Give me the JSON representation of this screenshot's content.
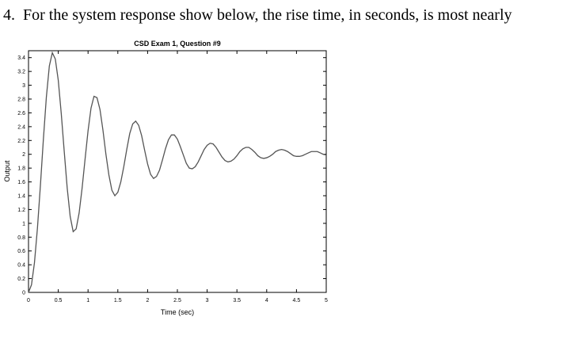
{
  "question": {
    "number": "4.",
    "text": "For the system response show below, the rise time, in seconds, is most nearly"
  },
  "chart_data": {
    "type": "line",
    "title": "CSD Exam 1, Question #9",
    "xlabel": "Time (sec)",
    "ylabel": "Output",
    "xlim": [
      0,
      5
    ],
    "ylim": [
      0,
      3.5
    ],
    "x_ticks": [
      0,
      0.5,
      1,
      1.5,
      2,
      2.5,
      3,
      3.5,
      4,
      4.5,
      5
    ],
    "x_tick_labels": [
      "0",
      "0.5",
      "1",
      "1.5",
      "2",
      "2.5",
      "3",
      "3.5",
      "4",
      "4.5",
      "5"
    ],
    "y_ticks": [
      0,
      0.2,
      0.4,
      0.6,
      0.8,
      1,
      1.2,
      1.4,
      1.6,
      1.8,
      2,
      2.2,
      2.4,
      2.6,
      2.8,
      3,
      3.2,
      3.4
    ],
    "y_tick_labels": [
      "0",
      "0.2",
      "0.4",
      "0.6",
      "0.8",
      "1",
      "1.2",
      "1.4",
      "1.6",
      "1.8",
      "2",
      "2.2",
      "2.4",
      "2.6",
      "2.8",
      "3",
      "3.2",
      "3.4"
    ],
    "grid": false,
    "line_color": "#555555",
    "series": [
      {
        "x": [
          0,
          0.05,
          0.1,
          0.15,
          0.2,
          0.25,
          0.3,
          0.35,
          0.4,
          0.45,
          0.5,
          0.55,
          0.6,
          0.65,
          0.7,
          0.75,
          0.8,
          0.85,
          0.9,
          0.95,
          1.0,
          1.05,
          1.1,
          1.15,
          1.2,
          1.25,
          1.3,
          1.35,
          1.4,
          1.45,
          1.5,
          1.55,
          1.6,
          1.65,
          1.7,
          1.75,
          1.8,
          1.85,
          1.9,
          1.95,
          2.0,
          2.05,
          2.1,
          2.15,
          2.2,
          2.25,
          2.3,
          2.35,
          2.4,
          2.45,
          2.5,
          2.55,
          2.6,
          2.65,
          2.7,
          2.75,
          2.8,
          2.85,
          2.9,
          2.95,
          3.0,
          3.05,
          3.1,
          3.15,
          3.2,
          3.25,
          3.3,
          3.35,
          3.4,
          3.45,
          3.5,
          3.55,
          3.6,
          3.65,
          3.7,
          3.75,
          3.8,
          3.85,
          3.9,
          3.95,
          4.0,
          4.05,
          4.1,
          4.15,
          4.2,
          4.25,
          4.3,
          4.35,
          4.4,
          4.45,
          4.5,
          4.55,
          4.6,
          4.65,
          4.7,
          4.75,
          4.8,
          4.85,
          4.9,
          4.95,
          5.0
        ],
        "values": [
          0.0,
          0.11,
          0.43,
          0.93,
          1.55,
          2.22,
          2.83,
          3.28,
          3.47,
          3.38,
          3.07,
          2.59,
          2.04,
          1.51,
          1.1,
          0.88,
          0.92,
          1.15,
          1.51,
          1.93,
          2.34,
          2.67,
          2.84,
          2.82,
          2.65,
          2.35,
          2.0,
          1.7,
          1.48,
          1.4,
          1.45,
          1.6,
          1.82,
          2.07,
          2.3,
          2.44,
          2.48,
          2.42,
          2.27,
          2.06,
          1.86,
          1.71,
          1.65,
          1.68,
          1.77,
          1.92,
          2.08,
          2.21,
          2.28,
          2.28,
          2.22,
          2.11,
          1.99,
          1.87,
          1.8,
          1.79,
          1.82,
          1.89,
          1.98,
          2.07,
          2.13,
          2.16,
          2.15,
          2.1,
          2.03,
          1.96,
          1.91,
          1.89,
          1.9,
          1.93,
          1.98,
          2.04,
          2.08,
          2.1,
          2.1,
          2.07,
          2.03,
          1.98,
          1.95,
          1.94,
          1.95,
          1.97,
          2.0,
          2.04,
          2.06,
          2.07,
          2.06,
          2.04,
          2.01,
          1.98,
          1.97,
          1.97,
          1.98,
          2.0,
          2.02,
          2.04,
          2.04,
          2.04,
          2.02,
          2.0,
          1.99
        ]
      }
    ]
  }
}
